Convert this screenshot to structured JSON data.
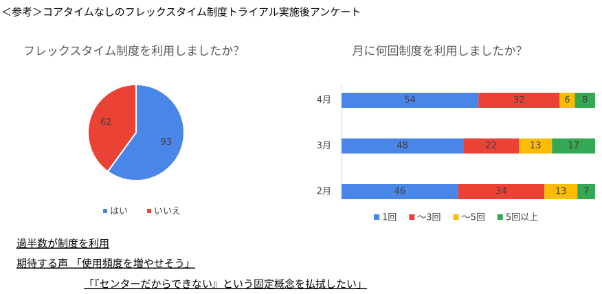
{
  "header": {
    "title": "＜参考＞コアタイムなしのフレックスタイム制度トライアル実施後アンケート"
  },
  "chart_data": [
    {
      "type": "pie",
      "title": "フレックスタイム制度を利用しましたか？",
      "categories": [
        "はい",
        "いいえ"
      ],
      "values": [
        93,
        62
      ],
      "colors": [
        "#4a86e8",
        "#ea4335"
      ],
      "legend": "bottom"
    },
    {
      "type": "stacked-barh",
      "title": "月に何回制度を利用しましたか？",
      "categories": [
        "4月",
        "3月",
        "2月"
      ],
      "xlim": [
        0,
        100
      ],
      "legend": "bottom",
      "series": [
        {
          "name": "1回",
          "color": "#4a86e8",
          "values": [
            54,
            48,
            46
          ]
        },
        {
          "name": "～3回",
          "color": "#ea4335",
          "values": [
            32,
            22,
            34
          ]
        },
        {
          "name": "～5回",
          "color": "#fbbc04",
          "values": [
            6,
            13,
            13
          ]
        },
        {
          "name": "5回以上",
          "color": "#34a853",
          "values": [
            8,
            17,
            7
          ]
        }
      ]
    }
  ],
  "notes": [
    "過半数が制度を利用",
    "期待する声 「使用頻度を増やせそう」",
    "「『センターだからできない』という固定概念を払拭したい」"
  ]
}
